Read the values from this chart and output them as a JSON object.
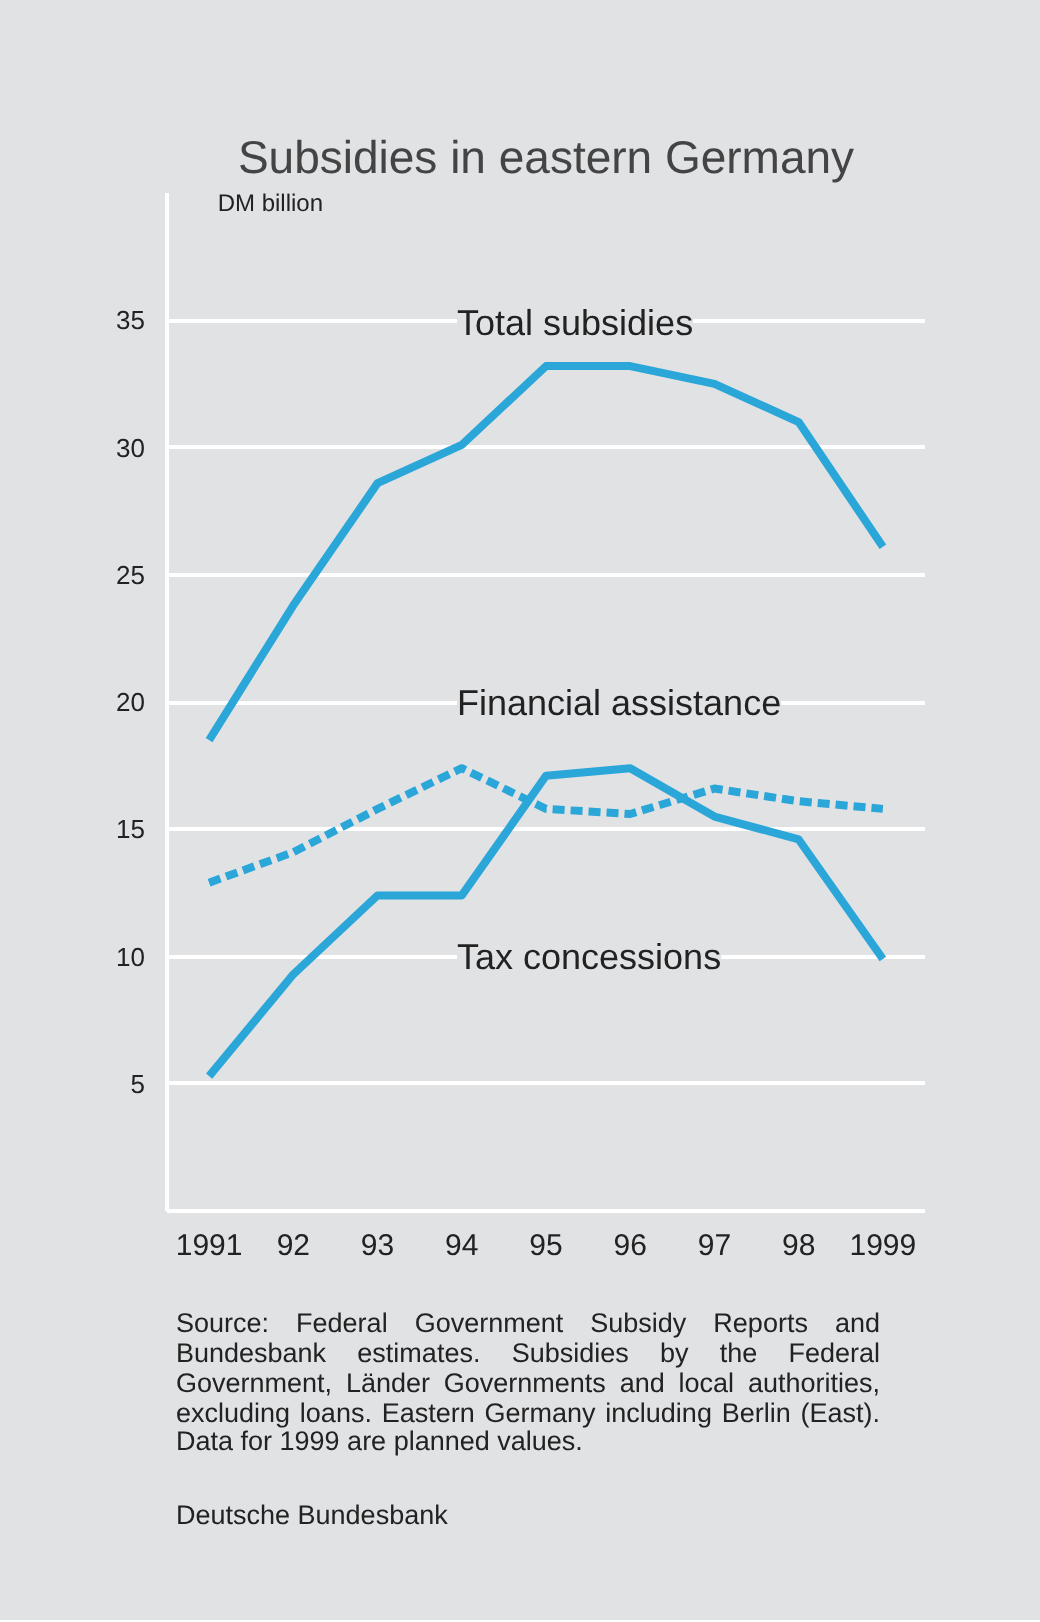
{
  "chart_data": {
    "type": "line",
    "title": "Subsidies in eastern Germany",
    "ylabel": "DM billion",
    "categories": [
      "1991",
      "92",
      "93",
      "94",
      "95",
      "96",
      "97",
      "98",
      "1999"
    ],
    "series": [
      {
        "name": "Total subsidies",
        "color": "#2aa6d8",
        "line_style": "solid",
        "values": [
          18.5,
          23.8,
          28.6,
          30.1,
          33.2,
          33.2,
          32.5,
          31.0,
          26.1
        ]
      },
      {
        "name": "Financial assistance",
        "color": "#2aa6d8",
        "line_style": "dashed",
        "values": [
          12.9,
          14.1,
          15.8,
          17.4,
          15.8,
          15.6,
          16.6,
          16.1,
          15.8
        ]
      },
      {
        "name": "Tax concessions",
        "color": "#2aa6d8",
        "line_style": "solid",
        "values": [
          5.3,
          9.3,
          12.4,
          12.4,
          17.1,
          17.4,
          15.5,
          14.6,
          9.9
        ]
      }
    ],
    "ylim": [
      0,
      40
    ],
    "yticks": [
      5,
      10,
      15,
      20,
      25,
      30,
      35
    ],
    "grid": "y",
    "annotations": [
      "Source: Federal Government Subsidy Reports and Bundesbank estimates. Subsidies by the Federal Government, Länder Governments and local authorities, excluding loans. Eastern Germany including Berlin (East). Data for 1999 are planned values.",
      "Deutsche Bundesbank"
    ]
  }
}
